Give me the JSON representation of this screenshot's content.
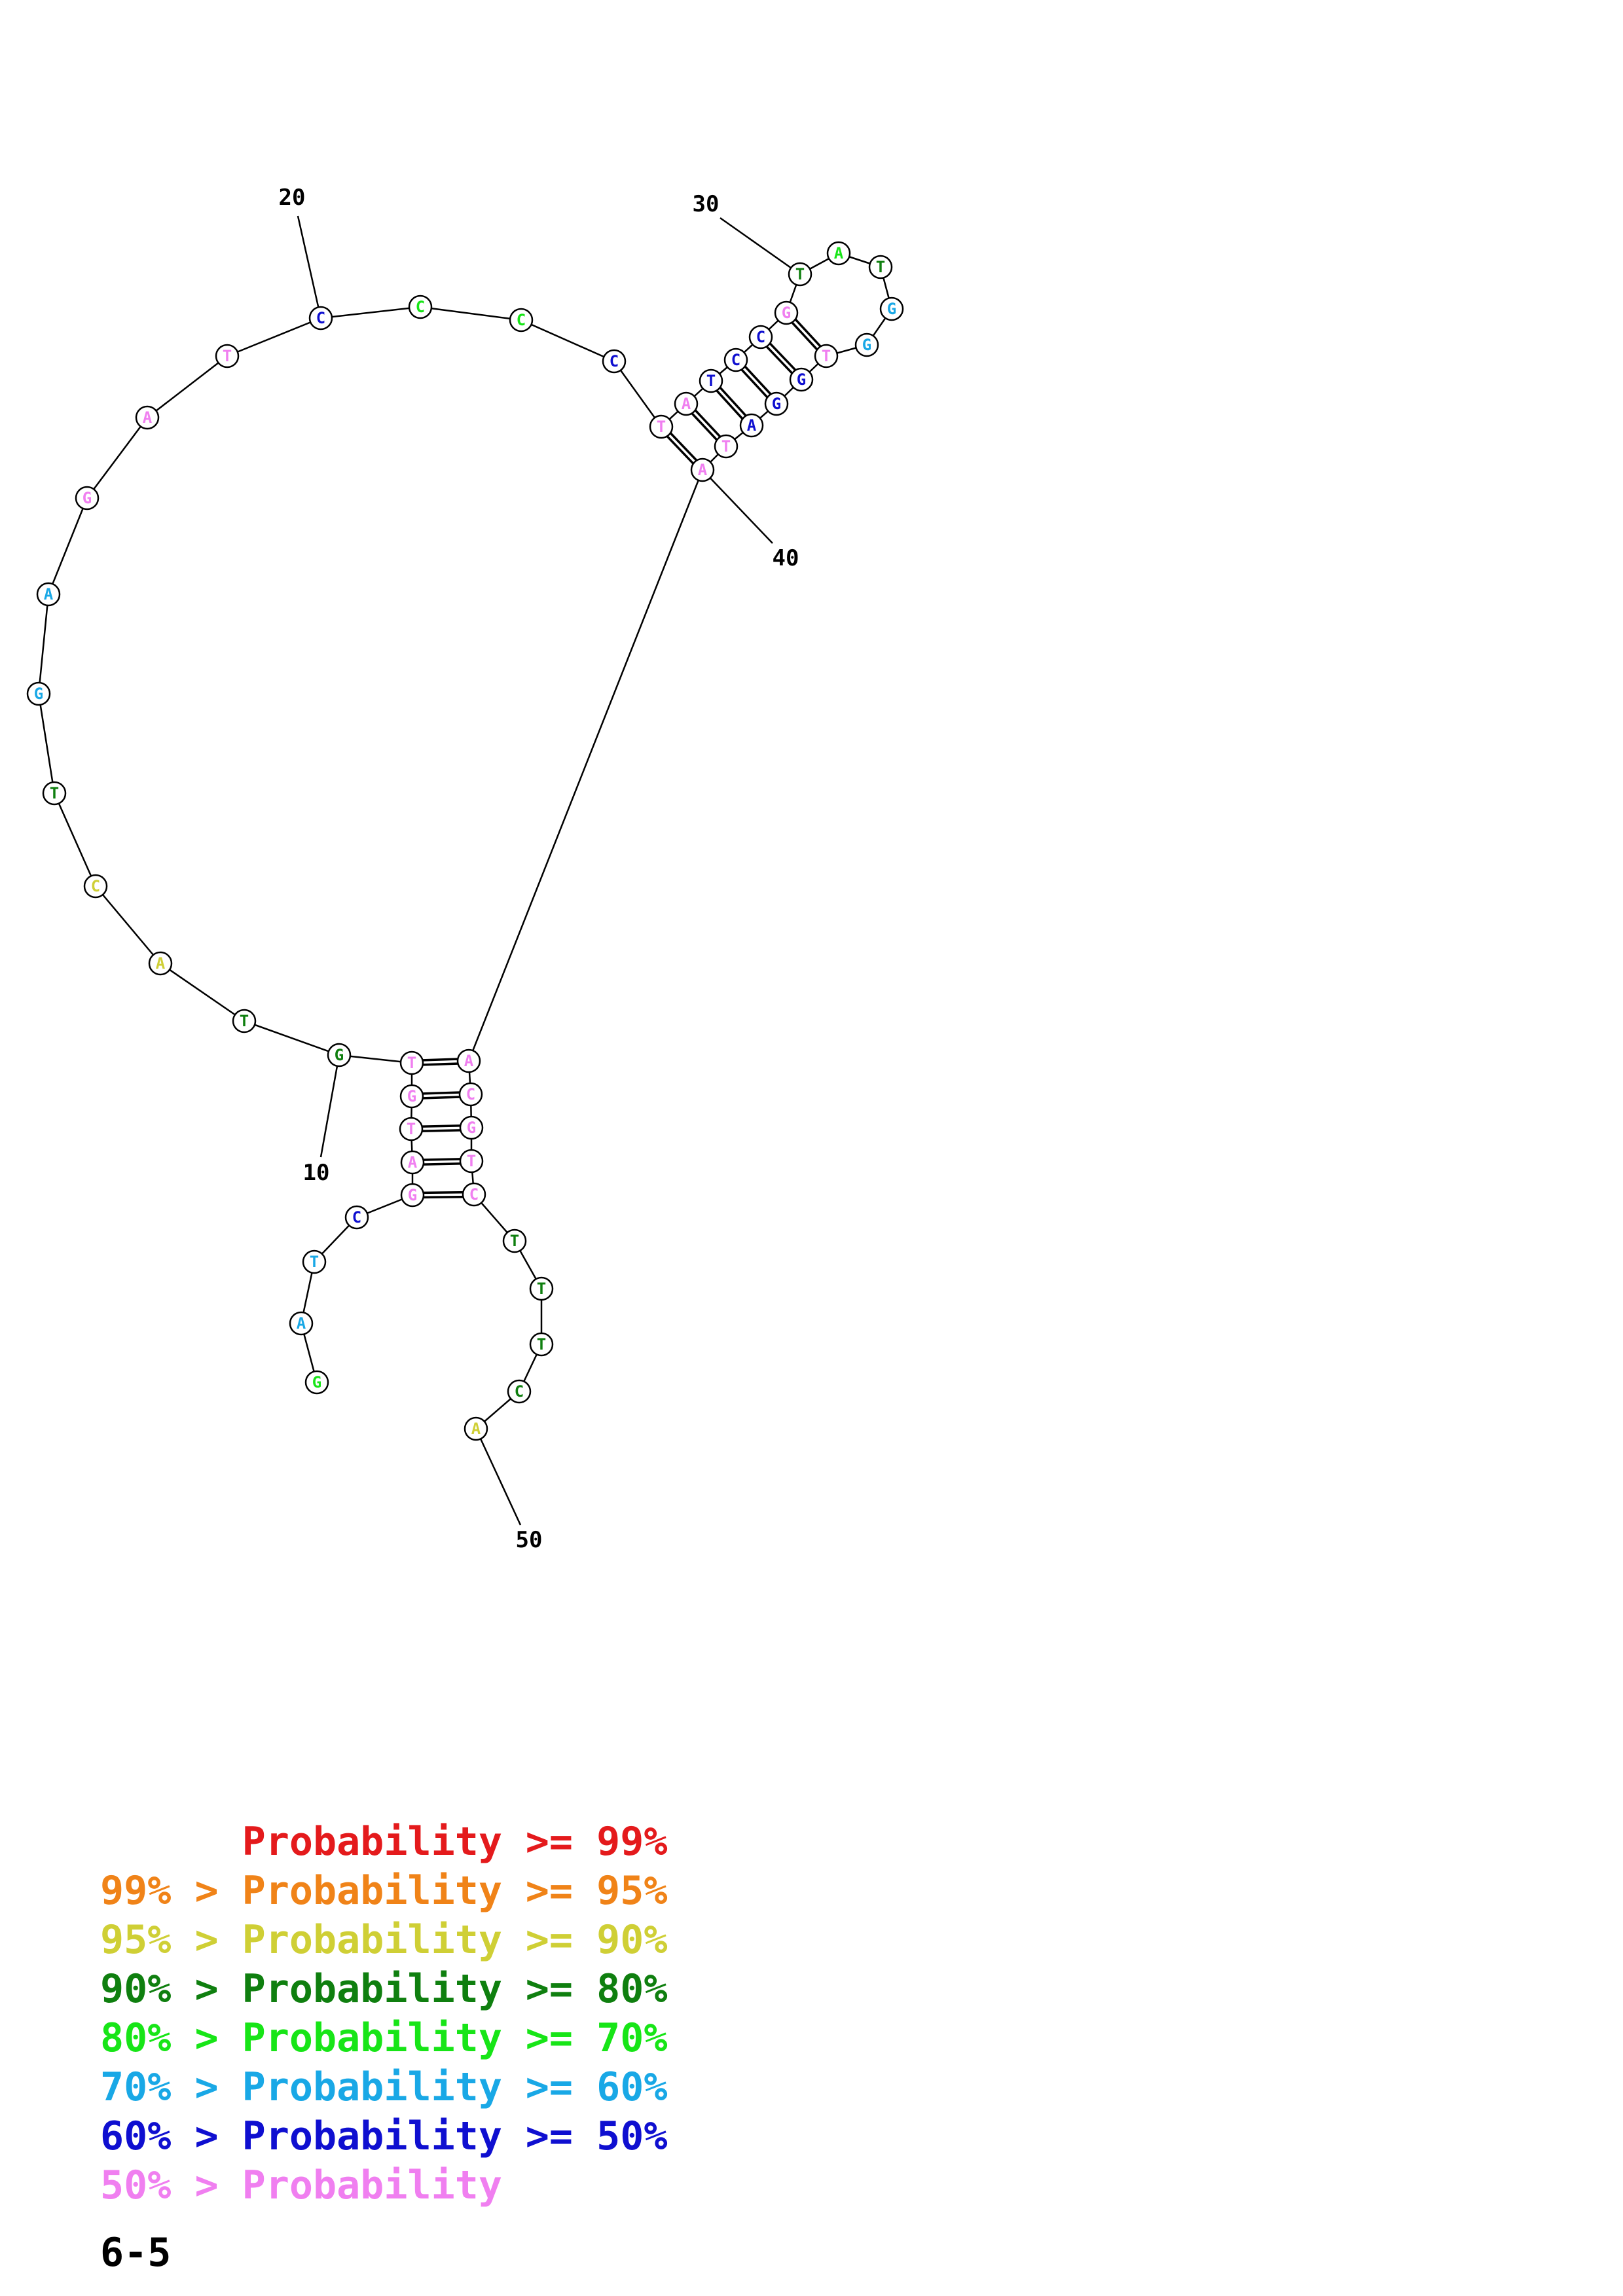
{
  "colors": {
    "p99": "#e41a1c",
    "p95": "#f08318",
    "p90": "#cfcf35",
    "p80": "#0f7f0f",
    "p70": "#17e517",
    "p60": "#19a8e6",
    "p50": "#0f0fd0",
    "plow": "#f07ff0"
  },
  "structure": {
    "nucleotides": [
      {
        "i": 1,
        "base": "G",
        "prob": "p70"
      },
      {
        "i": 2,
        "base": "A",
        "prob": "p60"
      },
      {
        "i": 3,
        "base": "T",
        "prob": "p60"
      },
      {
        "i": 4,
        "base": "C",
        "prob": "p50"
      },
      {
        "i": 5,
        "base": "G",
        "prob": "plow"
      },
      {
        "i": 6,
        "base": "A",
        "prob": "plow"
      },
      {
        "i": 7,
        "base": "T",
        "prob": "plow"
      },
      {
        "i": 8,
        "base": "G",
        "prob": "plow"
      },
      {
        "i": 9,
        "base": "T",
        "prob": "plow"
      },
      {
        "i": 10,
        "base": "G",
        "prob": "p80"
      },
      {
        "i": 11,
        "base": "T",
        "prob": "p80"
      },
      {
        "i": 12,
        "base": "A",
        "prob": "p90"
      },
      {
        "i": 13,
        "base": "C",
        "prob": "p90"
      },
      {
        "i": 14,
        "base": "T",
        "prob": "p80"
      },
      {
        "i": 15,
        "base": "G",
        "prob": "p60"
      },
      {
        "i": 16,
        "base": "A",
        "prob": "p60"
      },
      {
        "i": 17,
        "base": "G",
        "prob": "plow"
      },
      {
        "i": 18,
        "base": "A",
        "prob": "plow"
      },
      {
        "i": 19,
        "base": "T",
        "prob": "plow"
      },
      {
        "i": 20,
        "base": "C",
        "prob": "p50"
      },
      {
        "i": 21,
        "base": "C",
        "prob": "p70"
      },
      {
        "i": 22,
        "base": "C",
        "prob": "p70"
      },
      {
        "i": 23,
        "base": "C",
        "prob": "p50"
      },
      {
        "i": 24,
        "base": "T",
        "prob": "plow"
      },
      {
        "i": 25,
        "base": "A",
        "prob": "plow"
      },
      {
        "i": 26,
        "base": "T",
        "prob": "p50"
      },
      {
        "i": 27,
        "base": "C",
        "prob": "p50"
      },
      {
        "i": 28,
        "base": "C",
        "prob": "p50"
      },
      {
        "i": 29,
        "base": "G",
        "prob": "plow"
      },
      {
        "i": 30,
        "base": "T",
        "prob": "p80"
      },
      {
        "i": 31,
        "base": "A",
        "prob": "p70"
      },
      {
        "i": 32,
        "base": "T",
        "prob": "p80"
      },
      {
        "i": 33,
        "base": "G",
        "prob": "p60"
      },
      {
        "i": 34,
        "base": "G",
        "prob": "p60"
      },
      {
        "i": 35,
        "base": "T",
        "prob": "plow"
      },
      {
        "i": 36,
        "base": "G",
        "prob": "p50"
      },
      {
        "i": 37,
        "base": "G",
        "prob": "p50"
      },
      {
        "i": 38,
        "base": "A",
        "prob": "p50"
      },
      {
        "i": 39,
        "base": "T",
        "prob": "plow"
      },
      {
        "i": 40,
        "base": "A",
        "prob": "plow"
      },
      {
        "i": 41,
        "base": "A",
        "prob": "plow"
      },
      {
        "i": 42,
        "base": "C",
        "prob": "plow"
      },
      {
        "i": 43,
        "base": "G",
        "prob": "plow"
      },
      {
        "i": 44,
        "base": "T",
        "prob": "plow"
      },
      {
        "i": 45,
        "base": "C",
        "prob": "plow"
      },
      {
        "i": 46,
        "base": "T",
        "prob": "p80"
      },
      {
        "i": 47,
        "base": "T",
        "prob": "p80"
      },
      {
        "i": 48,
        "base": "T",
        "prob": "p80"
      },
      {
        "i": 49,
        "base": "C",
        "prob": "p80"
      },
      {
        "i": 50,
        "base": "A",
        "prob": "p90"
      }
    ],
    "pairs": [
      [
        5,
        45
      ],
      [
        6,
        44
      ],
      [
        7,
        43
      ],
      [
        8,
        42
      ],
      [
        9,
        41
      ],
      [
        24,
        40
      ],
      [
        25,
        39
      ],
      [
        26,
        38
      ],
      [
        27,
        37
      ],
      [
        28,
        36
      ],
      [
        29,
        35
      ]
    ],
    "position_labels": [
      {
        "index": 10,
        "text": "10"
      },
      {
        "index": 20,
        "text": "20"
      },
      {
        "index": 30,
        "text": "30"
      },
      {
        "index": 40,
        "text": "40"
      },
      {
        "index": 50,
        "text": "50"
      }
    ]
  },
  "legend": [
    {
      "prefix": "",
      "mid": "Probability",
      "suffix": ">= 99%",
      "color_key": "p99"
    },
    {
      "prefix": "99% >",
      "mid": "Probability",
      "suffix": ">= 95%",
      "color_key": "p95"
    },
    {
      "prefix": "95% >",
      "mid": "Probability",
      "suffix": ">= 90%",
      "color_key": "p90"
    },
    {
      "prefix": "90% >",
      "mid": "Probability",
      "suffix": ">= 80%",
      "color_key": "p80"
    },
    {
      "prefix": "80% >",
      "mid": "Probability",
      "suffix": ">= 70%",
      "color_key": "p70"
    },
    {
      "prefix": "70% >",
      "mid": "Probability",
      "suffix": ">= 60%",
      "color_key": "p60"
    },
    {
      "prefix": "60% >",
      "mid": "Probability",
      "suffix": ">= 50%",
      "color_key": "p50"
    },
    {
      "prefix": "50% >",
      "mid": "Probability",
      "suffix": "",
      "color_key": "plow"
    }
  ],
  "structure_label": "6-5"
}
